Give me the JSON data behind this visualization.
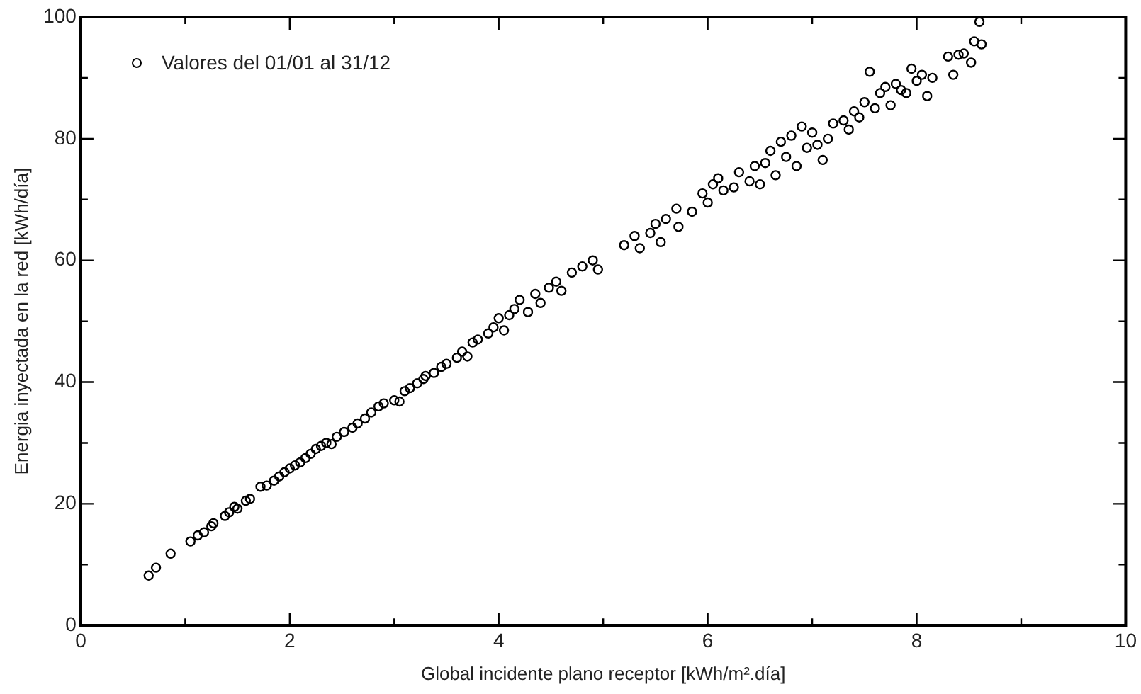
{
  "chart_data": {
    "type": "scatter",
    "xlabel": "Global incidente plano receptor [kWh/m².día]",
    "ylabel": "Energia inyectada en la red [kWh/día]",
    "xlim": [
      0,
      10
    ],
    "ylim": [
      0,
      100
    ],
    "xticks": [
      0,
      {
        "value": 1,
        "label": null
      },
      2,
      {
        "value": 3,
        "label": null
      },
      4,
      {
        "value": 5,
        "label": null
      },
      6,
      {
        "value": 7,
        "label": null
      },
      8,
      {
        "value": 9,
        "label": null
      },
      10
    ],
    "yticks": [
      0,
      {
        "value": 10,
        "label": null
      },
      20,
      {
        "value": 30,
        "label": null
      },
      40,
      {
        "value": 50,
        "label": null
      },
      60,
      {
        "value": 70,
        "label": null
      },
      80,
      {
        "value": 90,
        "label": null
      },
      100
    ],
    "grid": false,
    "legend": "top left",
    "marker": "circle",
    "series": [
      {
        "name": "Valores del 01/01 al 31/12",
        "color": "#000000",
        "x": [
          0.65,
          0.72,
          0.86,
          1.05,
          1.12,
          1.18,
          1.25,
          1.27,
          1.38,
          1.42,
          1.47,
          1.5,
          1.58,
          1.62,
          1.72,
          1.78,
          1.85,
          1.9,
          1.95,
          2.0,
          2.05,
          2.1,
          2.15,
          2.2,
          2.25,
          2.3,
          2.35,
          2.4,
          2.45,
          2.52,
          2.6,
          2.65,
          2.72,
          2.78,
          2.85,
          2.9,
          3.0,
          3.05,
          3.1,
          3.15,
          3.22,
          3.28,
          3.3,
          3.38,
          3.45,
          3.5,
          3.6,
          3.65,
          3.7,
          3.75,
          3.8,
          3.9,
          3.95,
          4.0,
          4.05,
          4.1,
          4.15,
          4.2,
          4.28,
          4.35,
          4.4,
          4.48,
          4.55,
          4.6,
          4.7,
          4.8,
          4.9,
          4.95,
          5.2,
          5.3,
          5.35,
          5.45,
          5.5,
          5.55,
          5.6,
          5.7,
          5.72,
          5.85,
          5.95,
          6.0,
          6.05,
          6.1,
          6.15,
          6.25,
          6.3,
          6.4,
          6.45,
          6.5,
          6.55,
          6.6,
          6.65,
          6.7,
          6.75,
          6.8,
          6.85,
          6.9,
          6.95,
          7.0,
          7.05,
          7.1,
          7.15,
          7.2,
          7.3,
          7.35,
          7.4,
          7.45,
          7.5,
          7.55,
          7.6,
          7.65,
          7.7,
          7.75,
          7.8,
          7.85,
          7.9,
          7.95,
          8.0,
          8.05,
          8.1,
          8.15,
          8.3,
          8.35,
          8.4,
          8.45,
          8.52,
          8.55,
          8.6,
          8.62
        ],
        "values": [
          8.2,
          9.5,
          11.8,
          13.8,
          14.8,
          15.3,
          16.3,
          16.8,
          18,
          18.6,
          19.5,
          19.2,
          20.5,
          20.8,
          22.8,
          23,
          23.8,
          24.5,
          25.2,
          25.8,
          26.3,
          26.8,
          27.5,
          28.2,
          29,
          29.5,
          30,
          29.8,
          31,
          31.8,
          32.5,
          33.2,
          34,
          35,
          36,
          36.5,
          37,
          36.8,
          38.5,
          39,
          39.8,
          40.5,
          41,
          41.5,
          42.5,
          43,
          44,
          45,
          44.2,
          46.5,
          47,
          48,
          49,
          50.5,
          48.5,
          51,
          52,
          53.5,
          51.5,
          54.5,
          53,
          55.5,
          56.5,
          55,
          58,
          59,
          60,
          58.5,
          62.5,
          64,
          62,
          64.5,
          66,
          63,
          66.8,
          68.5,
          65.5,
          68,
          71,
          69.5,
          72.5,
          73.5,
          71.5,
          72,
          74.5,
          73,
          75.5,
          72.5,
          76,
          78,
          74,
          79.5,
          77,
          80.5,
          75.5,
          82,
          78.5,
          81,
          79,
          76.5,
          80,
          82.5,
          83,
          81.5,
          84.5,
          83.5,
          86,
          91,
          85,
          87.5,
          88.5,
          85.5,
          89,
          88,
          87.5,
          91.5,
          89.5,
          90.5,
          87,
          90,
          93.5,
          90.5,
          93.8,
          94,
          92.5,
          96,
          99.2,
          95.5
        ]
      }
    ]
  }
}
